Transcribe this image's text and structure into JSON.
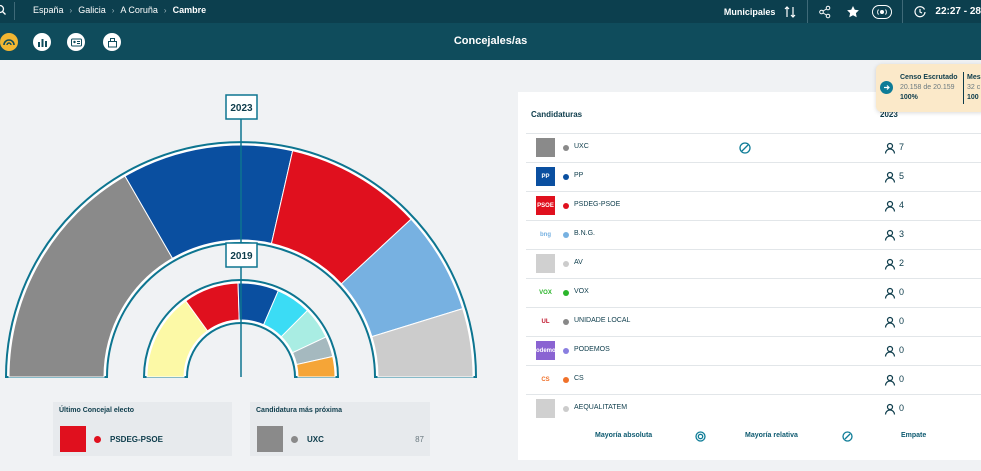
{
  "breadcrumb": [
    "España",
    "Galicia",
    "A Coruña",
    "Cambre"
  ],
  "topbar": {
    "election_type": "Municipales",
    "time": "22:27 - 28"
  },
  "page_title": "Concejales/as",
  "hemicycle": {
    "outer_year": "2023",
    "inner_year": "2019",
    "outer_seats": [
      {
        "party": "UXC",
        "seats": 7,
        "color": "#8a8a8a"
      },
      {
        "party": "PP",
        "seats": 5,
        "color": "#0a4fa0"
      },
      {
        "party": "PSDEG-PSOE",
        "seats": 4,
        "color": "#e0101e"
      },
      {
        "party": "B.N.G.",
        "seats": 3,
        "color": "#77b1e1"
      },
      {
        "party": "AV",
        "seats": 2,
        "color": "#cccccc"
      }
    ],
    "inner_seats": [
      {
        "party": "UXC",
        "share": 0.3,
        "color": "#fcf9a6"
      },
      {
        "party": "PSDEG-PSOE",
        "share": 0.19,
        "color": "#e0101e"
      },
      {
        "party": "PP",
        "share": 0.14,
        "color": "#0a4fa0"
      },
      {
        "party": "",
        "share": 0.12,
        "color": "#3bdcf5"
      },
      {
        "party": "",
        "share": 0.11,
        "color": "#a9ede3"
      },
      {
        "party": "",
        "share": 0.07,
        "color": "#a5b9bf"
      },
      {
        "party": "",
        "share": 0.07,
        "color": "#f5a537"
      }
    ]
  },
  "cards": {
    "last": {
      "title": "Último Concejal electo",
      "party": "PSDEG-PSOE",
      "color": "#e0101e"
    },
    "next": {
      "title": "Candidatura más próxima",
      "party": "UXC",
      "value": "87",
      "color": "#8a8a8a"
    }
  },
  "table": {
    "header_party": "Candidaturas",
    "header_year": "2023",
    "rows": [
      {
        "party": "UXC",
        "seats": "7",
        "dot": "#8a8a8a",
        "logo_text": "",
        "logo_bg": "#8a8a8a",
        "logo_fg": "#ffffff",
        "mark": "relative"
      },
      {
        "party": "PP",
        "seats": "5",
        "dot": "#0a4fa0",
        "logo_text": "PP",
        "logo_bg": "#0a4fa0",
        "logo_fg": "#ffffff",
        "mark": ""
      },
      {
        "party": "PSDEG-PSOE",
        "seats": "4",
        "dot": "#e0101e",
        "logo_text": "PSOE",
        "logo_bg": "#e0101e",
        "logo_fg": "#ffffff",
        "mark": ""
      },
      {
        "party": "B.N.G.",
        "seats": "3",
        "dot": "#77b1e1",
        "logo_text": "bng",
        "logo_bg": "#ffffff",
        "logo_fg": "#77b1e1",
        "mark": ""
      },
      {
        "party": "AV",
        "seats": "2",
        "dot": "#cccccc",
        "logo_text": "",
        "logo_bg": "#d0d0d0",
        "logo_fg": "#ffffff",
        "mark": ""
      },
      {
        "party": "VOX",
        "seats": "0",
        "dot": "#2bb52b",
        "logo_text": "VOX",
        "logo_bg": "#ffffff",
        "logo_fg": "#2bb52b",
        "mark": ""
      },
      {
        "party": "UNIDADE LOCAL",
        "seats": "0",
        "dot": "#888888",
        "logo_text": "UL",
        "logo_bg": "#ffffff",
        "logo_fg": "#c0142b",
        "mark": ""
      },
      {
        "party": "PODEMOS",
        "seats": "0",
        "dot": "#8a7fe0",
        "logo_text": "Podemos",
        "logo_bg": "#8a63d2",
        "logo_fg": "#ffffff",
        "mark": ""
      },
      {
        "party": "CS",
        "seats": "0",
        "dot": "#f0712a",
        "logo_text": "CS",
        "logo_bg": "#ffffff",
        "logo_fg": "#f0712a",
        "mark": ""
      },
      {
        "party": "AEQUALITATEM",
        "seats": "0",
        "dot": "#cccccc",
        "logo_text": "",
        "logo_bg": "#d0d0d0",
        "logo_fg": "#ffffff",
        "mark": ""
      }
    ],
    "legend": {
      "absolute": "Mayoría absoluta",
      "relative": "Mayoría relativa",
      "tie": "Empate"
    }
  },
  "tooltip": {
    "label1": "Censo Escrutado",
    "value1": "20.158 de 20.159",
    "pct1": "100%",
    "label2": "Mes",
    "value2": "32 c",
    "pct2": "100"
  }
}
